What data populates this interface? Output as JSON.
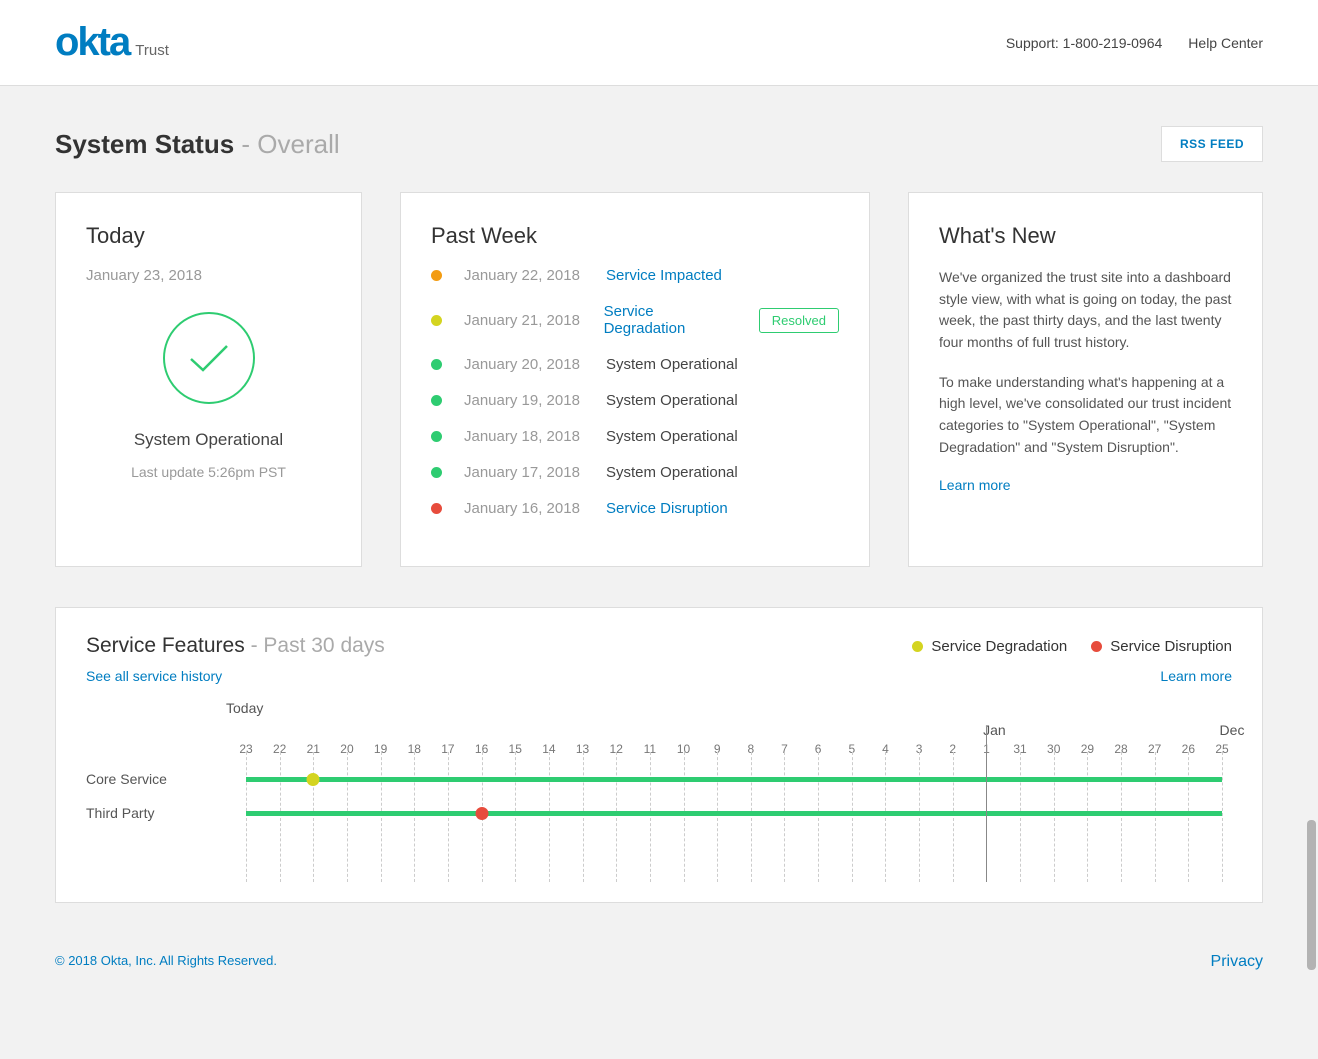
{
  "header": {
    "logo": "okta",
    "logo_sub": "Trust",
    "support": "Support: 1-800-219-0964",
    "help": "Help Center"
  },
  "title": {
    "main": "System Status",
    "sep": " - ",
    "sub": "Overall"
  },
  "rss": "RSS FEED",
  "today": {
    "heading": "Today",
    "date": "January 23, 2018",
    "status": "System Operational",
    "updated": "Last update 5:26pm PST"
  },
  "past_week": {
    "heading": "Past Week",
    "rows": [
      {
        "date": "January 22, 2018",
        "status": "Service Impacted",
        "link": true,
        "color": "#f39c12",
        "badge": null
      },
      {
        "date": "January 21, 2018",
        "status": "Service Degradation",
        "link": true,
        "color": "#d4d420",
        "badge": "Resolved"
      },
      {
        "date": "January 20, 2018",
        "status": "System Operational",
        "link": false,
        "color": "#2ecc71",
        "badge": null
      },
      {
        "date": "January 19, 2018",
        "status": "System Operational",
        "link": false,
        "color": "#2ecc71",
        "badge": null
      },
      {
        "date": "January 18, 2018",
        "status": "System Operational",
        "link": false,
        "color": "#2ecc71",
        "badge": null
      },
      {
        "date": "January 17, 2018",
        "status": "System Operational",
        "link": false,
        "color": "#2ecc71",
        "badge": null
      },
      {
        "date": "January 16, 2018",
        "status": "Service Disruption",
        "link": true,
        "color": "#e74c3c",
        "badge": null
      }
    ]
  },
  "whats_new": {
    "heading": "What's New",
    "p1": "We've organized the trust site into a dashboard style view, with what is going on today, the past week, the past thirty days, and the last twenty four months of full trust history.",
    "p2": "To make understanding what's happening at a high level, we've consolidated our trust incident categories to \"System Operational\", \"System Degradation\" and \"System Disruption\".",
    "learn": "Learn more"
  },
  "service_features": {
    "title": "Service Features",
    "sub": " - Past 30 days",
    "see_all": "See all service history",
    "learn": "Learn more",
    "legend": [
      {
        "label": "Service Degradation",
        "color": "#d4d420"
      },
      {
        "label": "Service Disruption",
        "color": "#e74c3c"
      }
    ],
    "today_label": "Today",
    "months": [
      {
        "label": "Jan",
        "pos_pct": 75.9
      },
      {
        "label": "Dec",
        "pos_pct": 100
      }
    ],
    "ticks": [
      "23",
      "22",
      "21",
      "20",
      "19",
      "18",
      "17",
      "16",
      "15",
      "14",
      "13",
      "12",
      "11",
      "10",
      "9",
      "8",
      "7",
      "6",
      "5",
      "4",
      "3",
      "2",
      "1",
      "31",
      "30",
      "29",
      "28",
      "27",
      "26",
      "25"
    ],
    "month_boundary_index": 22,
    "rows": [
      {
        "label": "Core Service",
        "events": [
          {
            "tick_index": 2,
            "color": "#d4d420"
          }
        ]
      },
      {
        "label": "Third Party",
        "events": [
          {
            "tick_index": 7,
            "color": "#e74c3c"
          }
        ]
      }
    ],
    "bar_color": "#2ecc71"
  },
  "footer": {
    "copy": "© 2018 Okta, Inc. All Rights Reserved.",
    "privacy": "Privacy"
  }
}
